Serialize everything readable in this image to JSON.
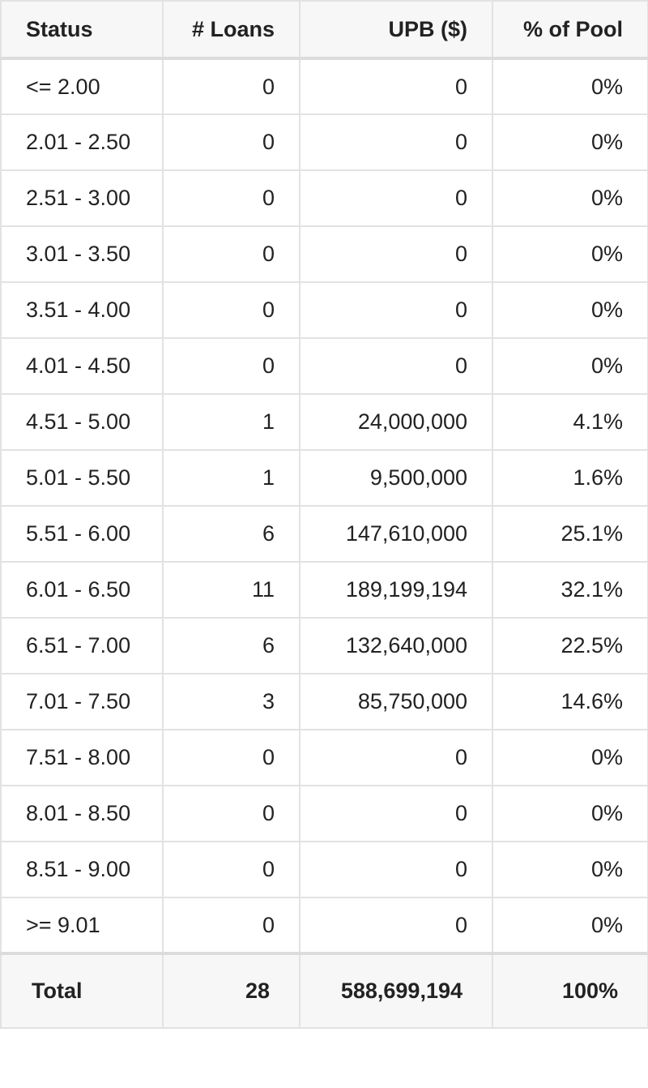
{
  "table": {
    "headers": [
      "Status",
      "# Loans",
      "UPB ($)",
      "% of Pool"
    ],
    "rows": [
      [
        "<= 2.00",
        "0",
        "0",
        "0%"
      ],
      [
        "2.01 - 2.50",
        "0",
        "0",
        "0%"
      ],
      [
        "2.51 - 3.00",
        "0",
        "0",
        "0%"
      ],
      [
        "3.01 - 3.50",
        "0",
        "0",
        "0%"
      ],
      [
        "3.51 - 4.00",
        "0",
        "0",
        "0%"
      ],
      [
        "4.01 - 4.50",
        "0",
        "0",
        "0%"
      ],
      [
        "4.51 - 5.00",
        "1",
        "24,000,000",
        "4.1%"
      ],
      [
        "5.01 - 5.50",
        "1",
        "9,500,000",
        "1.6%"
      ],
      [
        "5.51 - 6.00",
        "6",
        "147,610,000",
        "25.1%"
      ],
      [
        "6.01 - 6.50",
        "11",
        "189,199,194",
        "32.1%"
      ],
      [
        "6.51 - 7.00",
        "6",
        "132,640,000",
        "22.5%"
      ],
      [
        "7.01 - 7.50",
        "3",
        "85,750,000",
        "14.6%"
      ],
      [
        "7.51 - 8.00",
        "0",
        "0",
        "0%"
      ],
      [
        "8.01 - 8.50",
        "0",
        "0",
        "0%"
      ],
      [
        "8.51 - 9.00",
        "0",
        "0",
        "0%"
      ],
      [
        ">= 9.01",
        "0",
        "0",
        "0%"
      ]
    ],
    "total": [
      "Total",
      "28",
      "588,699,194",
      "100%"
    ]
  }
}
